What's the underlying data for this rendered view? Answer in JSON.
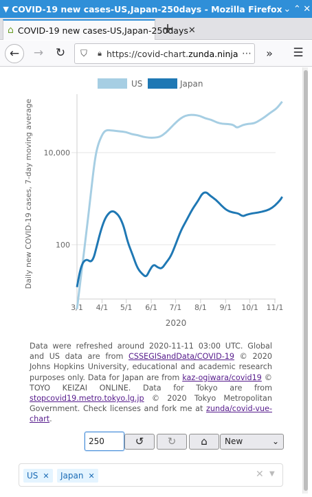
{
  "window": {
    "title": "COVID-19 new cases-US,Japan-250days - Mozilla Firefox"
  },
  "tab": {
    "title": "COVID-19 new cases-US,Japan-250days"
  },
  "url": {
    "prefix": "https://covid-chart.",
    "domain": "zunda.ninja"
  },
  "chart_data": {
    "type": "line",
    "legend": [
      "US",
      "Japan"
    ],
    "ylabel": "Daily new COVID-19 cases, 7-day moving average",
    "xlabel": "2020",
    "yscale": "log",
    "ytick_labels": [
      "10,000",
      "100"
    ],
    "x_tick_labels": [
      "3/1",
      "4/1",
      "5/1",
      "6/1",
      "7/1",
      "8/1",
      "9/1",
      "10/1",
      "11/1"
    ],
    "colors": {
      "US": "#a6cee3",
      "Japan": "#1f78b4"
    },
    "series": [
      {
        "name": "US",
        "points": [
          [
            "03-01",
            4
          ],
          [
            "03-08",
            40
          ],
          [
            "03-12",
            150
          ],
          [
            "03-18",
            1200
          ],
          [
            "03-23",
            7000
          ],
          [
            "03-27",
            15000
          ],
          [
            "04-01",
            24000
          ],
          [
            "04-04",
            29000
          ],
          [
            "04-08",
            31000
          ],
          [
            "04-15",
            30000
          ],
          [
            "04-22",
            29000
          ],
          [
            "05-01",
            28000
          ],
          [
            "05-08",
            25000
          ],
          [
            "05-15",
            24000
          ],
          [
            "05-22",
            22000
          ],
          [
            "05-29",
            21000
          ],
          [
            "06-05",
            21000
          ],
          [
            "06-12",
            22000
          ],
          [
            "06-19",
            27000
          ],
          [
            "06-26",
            36000
          ],
          [
            "07-03",
            48000
          ],
          [
            "07-10",
            60000
          ],
          [
            "07-17",
            66000
          ],
          [
            "07-24",
            66000
          ],
          [
            "07-31",
            63000
          ],
          [
            "08-07",
            55000
          ],
          [
            "08-14",
            52000
          ],
          [
            "08-21",
            45000
          ],
          [
            "08-28",
            42000
          ],
          [
            "09-04",
            42000
          ],
          [
            "09-11",
            40000
          ],
          [
            "09-15",
            34000
          ],
          [
            "09-22",
            40000
          ],
          [
            "09-29",
            42000
          ],
          [
            "10-06",
            43000
          ],
          [
            "10-13",
            50000
          ],
          [
            "10-20",
            60000
          ],
          [
            "10-27",
            75000
          ],
          [
            "11-03",
            90000
          ],
          [
            "11-10",
            128000
          ]
        ]
      },
      {
        "name": "Japan",
        "points": [
          [
            "03-01",
            12
          ],
          [
            "03-06",
            35
          ],
          [
            "03-12",
            50
          ],
          [
            "03-20",
            40
          ],
          [
            "03-26",
            100
          ],
          [
            "03-31",
            220
          ],
          [
            "04-05",
            380
          ],
          [
            "04-10",
            500
          ],
          [
            "04-14",
            540
          ],
          [
            "04-18",
            500
          ],
          [
            "04-23",
            400
          ],
          [
            "04-28",
            250
          ],
          [
            "05-03",
            110
          ],
          [
            "05-09",
            60
          ],
          [
            "05-15",
            30
          ],
          [
            "05-22",
            22
          ],
          [
            "05-26",
            20
          ],
          [
            "05-30",
            28
          ],
          [
            "06-04",
            38
          ],
          [
            "06-09",
            32
          ],
          [
            "06-14",
            30
          ],
          [
            "06-19",
            40
          ],
          [
            "06-25",
            55
          ],
          [
            "07-01",
            100
          ],
          [
            "07-08",
            210
          ],
          [
            "07-15",
            350
          ],
          [
            "07-22",
            600
          ],
          [
            "07-29",
            900
          ],
          [
            "08-03",
            1300
          ],
          [
            "08-08",
            1400
          ],
          [
            "08-13",
            1150
          ],
          [
            "08-20",
            950
          ],
          [
            "08-27",
            700
          ],
          [
            "09-03",
            550
          ],
          [
            "09-10",
            500
          ],
          [
            "09-17",
            480
          ],
          [
            "09-22",
            410
          ],
          [
            "09-27",
            450
          ],
          [
            "10-04",
            480
          ],
          [
            "10-11",
            500
          ],
          [
            "10-18",
            530
          ],
          [
            "10-25",
            580
          ],
          [
            "11-01",
            700
          ],
          [
            "11-08",
            950
          ],
          [
            "11-10",
            1100
          ]
        ]
      }
    ]
  },
  "note": {
    "t1": "Data were refreshed around 2020-11-11 03:00 UTC. Global and US data are from ",
    "link1": "CSSEGISandData/COVID-19",
    "t2": " © 2020 Johns Hopkins University, educational and academic research purposes only. Data for Japan are from ",
    "link2": "kaz-ogiwara/covid19",
    "t3": " © TOYO KEIZAI ONLINE. Data for Tokyo are from ",
    "link3": "stopcovid19.metro.tokyo.lg.jp",
    "t4": " © 2020 Tokyo Metropolitan Government. Check licenses and fork me at ",
    "link4": "zunda/covid-vue-chart",
    "t5": "."
  },
  "controls": {
    "days_value": "250",
    "select_value": "New"
  },
  "tags": {
    "us": "US",
    "japan": "Japan"
  }
}
